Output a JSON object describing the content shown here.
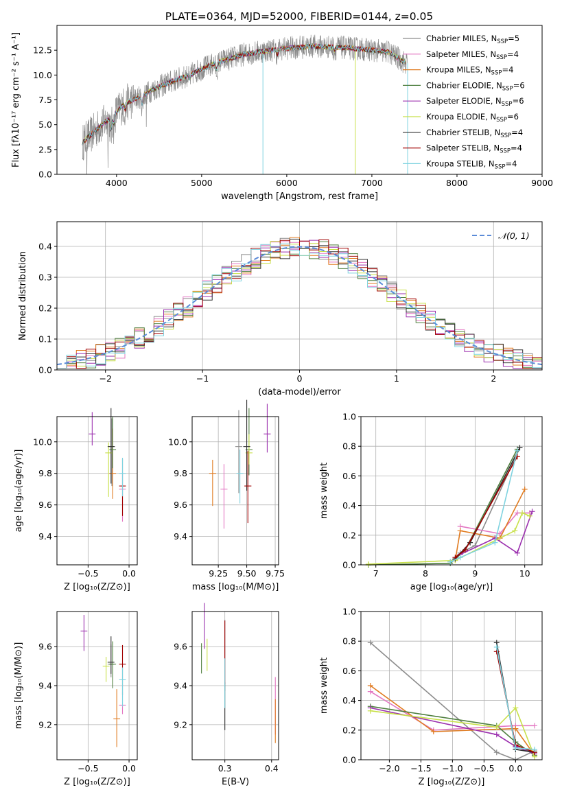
{
  "title": "PLATE=0364, MJD=52000, FIBERID=0144, z=0.05",
  "colors": {
    "chabrier_miles": "#8c8c8c",
    "salpeter_miles": "#e377c2",
    "kroupa_miles": "#e07b20",
    "chabrier_elodie": "#4f7f3f",
    "salpeter_elodie": "#9b2fae",
    "kroupa_elodie": "#c8e04a",
    "chabrier_stelib": "#303030",
    "salpeter_stelib": "#a00000",
    "kroupa_stelib": "#7fd3e0",
    "normal_curve": "#5b8bd8",
    "grid": "#b0b0b0"
  },
  "legend_spectrum": [
    {
      "model": "Chabrier MILES",
      "nssp": "5"
    },
    {
      "model": "Salpeter MILES",
      "nssp": "4"
    },
    {
      "model": "Kroupa MILES",
      "nssp": "4"
    },
    {
      "model": "Chabrier ELODIE",
      "nssp": "6"
    },
    {
      "model": "Salpeter ELODIE",
      "nssp": "6"
    },
    {
      "model": "Kroupa ELODIE",
      "nssp": "6"
    },
    {
      "model": "Chabrier STELIB",
      "nssp": "4"
    },
    {
      "model": "Salpeter STELIB",
      "nssp": "4"
    },
    {
      "model": "Kroupa STELIB",
      "nssp": "4"
    }
  ],
  "nssp_prefix": "N",
  "nssp_sub": "SSP",
  "chart_data": [
    {
      "id": "spectrum",
      "type": "line",
      "xlabel": "wavelength [Angstrom, rest frame]",
      "ylabel": "Flux [fλ10⁻¹⁷ erg cm⁻² s⁻¹ A⁻¹]",
      "xlim": [
        3300,
        9000
      ],
      "ylim": [
        0,
        15
      ],
      "xticks": [
        "4000",
        "5000",
        "6000",
        "7000",
        "8000",
        "9000"
      ],
      "yticks": [
        "0.0",
        "2.5",
        "5.0",
        "7.5",
        "10.0",
        "12.5"
      ],
      "grid": false,
      "legend": "top-right",
      "continuum": {
        "x": [
          3600,
          3700,
          3800,
          3900,
          4000,
          4100,
          4200,
          4300,
          4400,
          4600,
          4800,
          5000,
          5200,
          5500,
          5800,
          6000,
          6300,
          6600,
          6900,
          7200,
          7400
        ],
        "y": [
          3.2,
          4.0,
          4.8,
          5.5,
          6.3,
          7.2,
          7.5,
          7.9,
          8.4,
          9.2,
          9.8,
          10.6,
          11.3,
          12.1,
          12.5,
          12.7,
          12.9,
          12.8,
          12.6,
          12.3,
          11.2
        ]
      }
    },
    {
      "id": "residuals",
      "type": "bar",
      "xlabel": "(data-model)/error",
      "ylabel": "Normed distribution",
      "xlim": [
        -2.5,
        2.5
      ],
      "ylim": [
        0,
        0.48
      ],
      "xticks": [
        "−2",
        "−1",
        "0",
        "1",
        "2"
      ],
      "yticks": [
        "0.0",
        "0.1",
        "0.2",
        "0.3",
        "0.4"
      ],
      "grid": true,
      "legend": "top-right",
      "normal_label": "𝒩(0, 1)",
      "bin_width": 0.1
    },
    {
      "id": "z-age",
      "type": "scatter",
      "xlabel": "Z [log₁₀(Z/Z⊙)]",
      "ylabel": "age  [log₁₀(age/yr)]",
      "xlim": [
        -0.88,
        0.1
      ],
      "ylim": [
        9.22,
        10.16
      ],
      "xticks": [
        "−0.5",
        "0.0"
      ],
      "yticks": [
        "9.4",
        "9.6",
        "9.8",
        "10.0"
      ],
      "grid": true
    },
    {
      "id": "mass-age",
      "type": "scatter",
      "xlabel": "mass [log₁₀(M/M⊙)]",
      "ylabel": "",
      "xlim": [
        9.02,
        9.78
      ],
      "ylim": [
        9.22,
        10.16
      ],
      "xticks": [
        "9.25",
        "9.50",
        "9.75"
      ],
      "yticks": [
        "9.4",
        "9.6",
        "9.8",
        "10.0"
      ],
      "grid": true
    },
    {
      "id": "age-weight",
      "type": "line",
      "xlabel": "age  [log₁₀(age/yr)]",
      "ylabel": "mass weight",
      "xlim": [
        6.7,
        10.35
      ],
      "ylim": [
        0,
        1
      ],
      "xticks": [
        "7",
        "8",
        "9",
        "10"
      ],
      "yticks": [
        "0.0",
        "0.2",
        "0.4",
        "0.6",
        "0.8",
        "1.0"
      ],
      "grid": true
    },
    {
      "id": "z-mass",
      "type": "scatter",
      "xlabel": "Z [log₁₀(Z/Z⊙)]",
      "ylabel": "mass [log₁₀(M/M⊙)]",
      "xlim": [
        -0.88,
        0.1
      ],
      "ylim": [
        9.02,
        9.78
      ],
      "xticks": [
        "−0.5",
        "0.0"
      ],
      "yticks": [
        "9.2",
        "9.4",
        "9.6"
      ],
      "grid": true
    },
    {
      "id": "ebv-mass",
      "type": "scatter",
      "xlabel": "E(B-V)",
      "ylabel": "",
      "xlim": [
        0.23,
        0.415
      ],
      "ylim": [
        9.02,
        9.78
      ],
      "xticks": [
        "0.3",
        "0.4"
      ],
      "yticks": [
        "9.2",
        "9.4",
        "9.6"
      ],
      "grid": true
    },
    {
      "id": "z-weight",
      "type": "line",
      "xlabel": "Z [log₁₀(Z/Z⊙)]",
      "ylabel": "mass weight",
      "xlim": [
        -2.45,
        0.42
      ],
      "ylim": [
        0,
        1
      ],
      "xticks": [
        "−2.0",
        "−1.5",
        "−1.0",
        "−0.5",
        "0.0"
      ],
      "yticks": [
        "0.0",
        "0.2",
        "0.4",
        "0.6",
        "0.8",
        "1.0"
      ],
      "grid": true
    }
  ]
}
